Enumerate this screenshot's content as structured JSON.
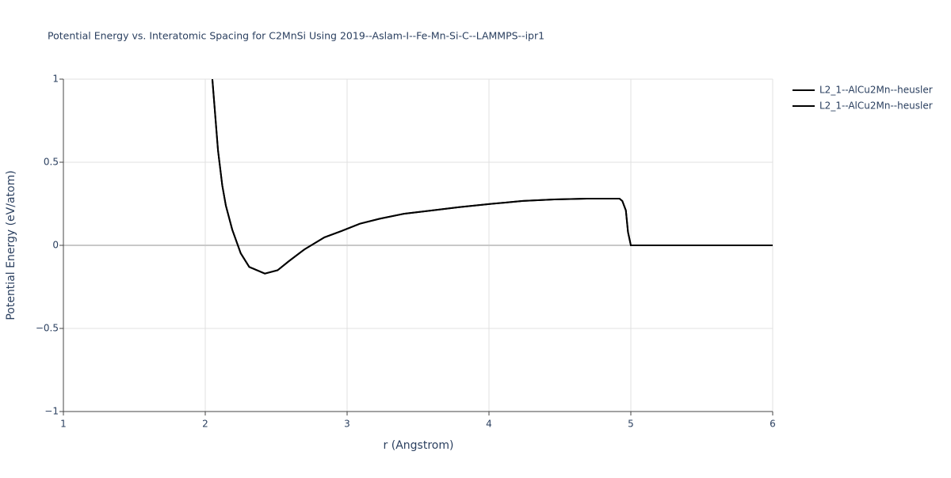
{
  "chart_data": {
    "type": "line",
    "title": "Potential Energy vs. Interatomic Spacing for C2MnSi Using 2019--Aslam-I--Fe-Mn-Si-C--LAMMPS--ipr1",
    "x_label": "r (Angstrom)",
    "y_label": "Potential Energy (eV/atom)",
    "x": [
      2.05,
      2.09,
      2.12,
      2.145,
      2.19,
      2.25,
      2.31,
      2.42,
      2.51,
      2.59,
      2.7,
      2.84,
      2.96,
      3.09,
      3.23,
      3.4,
      3.6,
      3.79,
      4.02,
      4.24,
      4.46,
      4.69,
      4.92,
      4.94,
      4.965,
      4.98,
      5.0,
      6.0
    ],
    "series": [
      {
        "name": "L2_1--AlCu2Mn--heusler",
        "color": "#000000",
        "values": [
          1.0,
          0.57,
          0.36,
          0.24,
          0.095,
          -0.048,
          -0.13,
          -0.17,
          -0.15,
          -0.095,
          -0.024,
          0.048,
          0.086,
          0.13,
          0.16,
          0.19,
          0.21,
          0.23,
          0.25,
          0.267,
          0.276,
          0.281,
          0.281,
          0.267,
          0.21,
          0.08,
          0,
          0
        ]
      },
      {
        "name": "L2_1--AlCu2Mn--heusler",
        "color": "#000000",
        "values": [
          1.0,
          0.57,
          0.36,
          0.24,
          0.095,
          -0.048,
          -0.13,
          -0.17,
          -0.15,
          -0.095,
          -0.024,
          0.048,
          0.086,
          0.13,
          0.16,
          0.19,
          0.21,
          0.23,
          0.25,
          0.267,
          0.276,
          0.281,
          0.281,
          0.267,
          0.21,
          0.08,
          0,
          0
        ]
      }
    ],
    "xlim": [
      1,
      6
    ],
    "xticks": [
      1,
      2,
      3,
      4,
      5,
      6
    ],
    "ylim": [
      -1,
      1
    ],
    "yticks": [
      {
        "value": -1,
        "label": "−1"
      },
      {
        "value": -0.5,
        "label": "−0.5"
      },
      0,
      0.5,
      1
    ],
    "grid": true,
    "legend": "right"
  }
}
